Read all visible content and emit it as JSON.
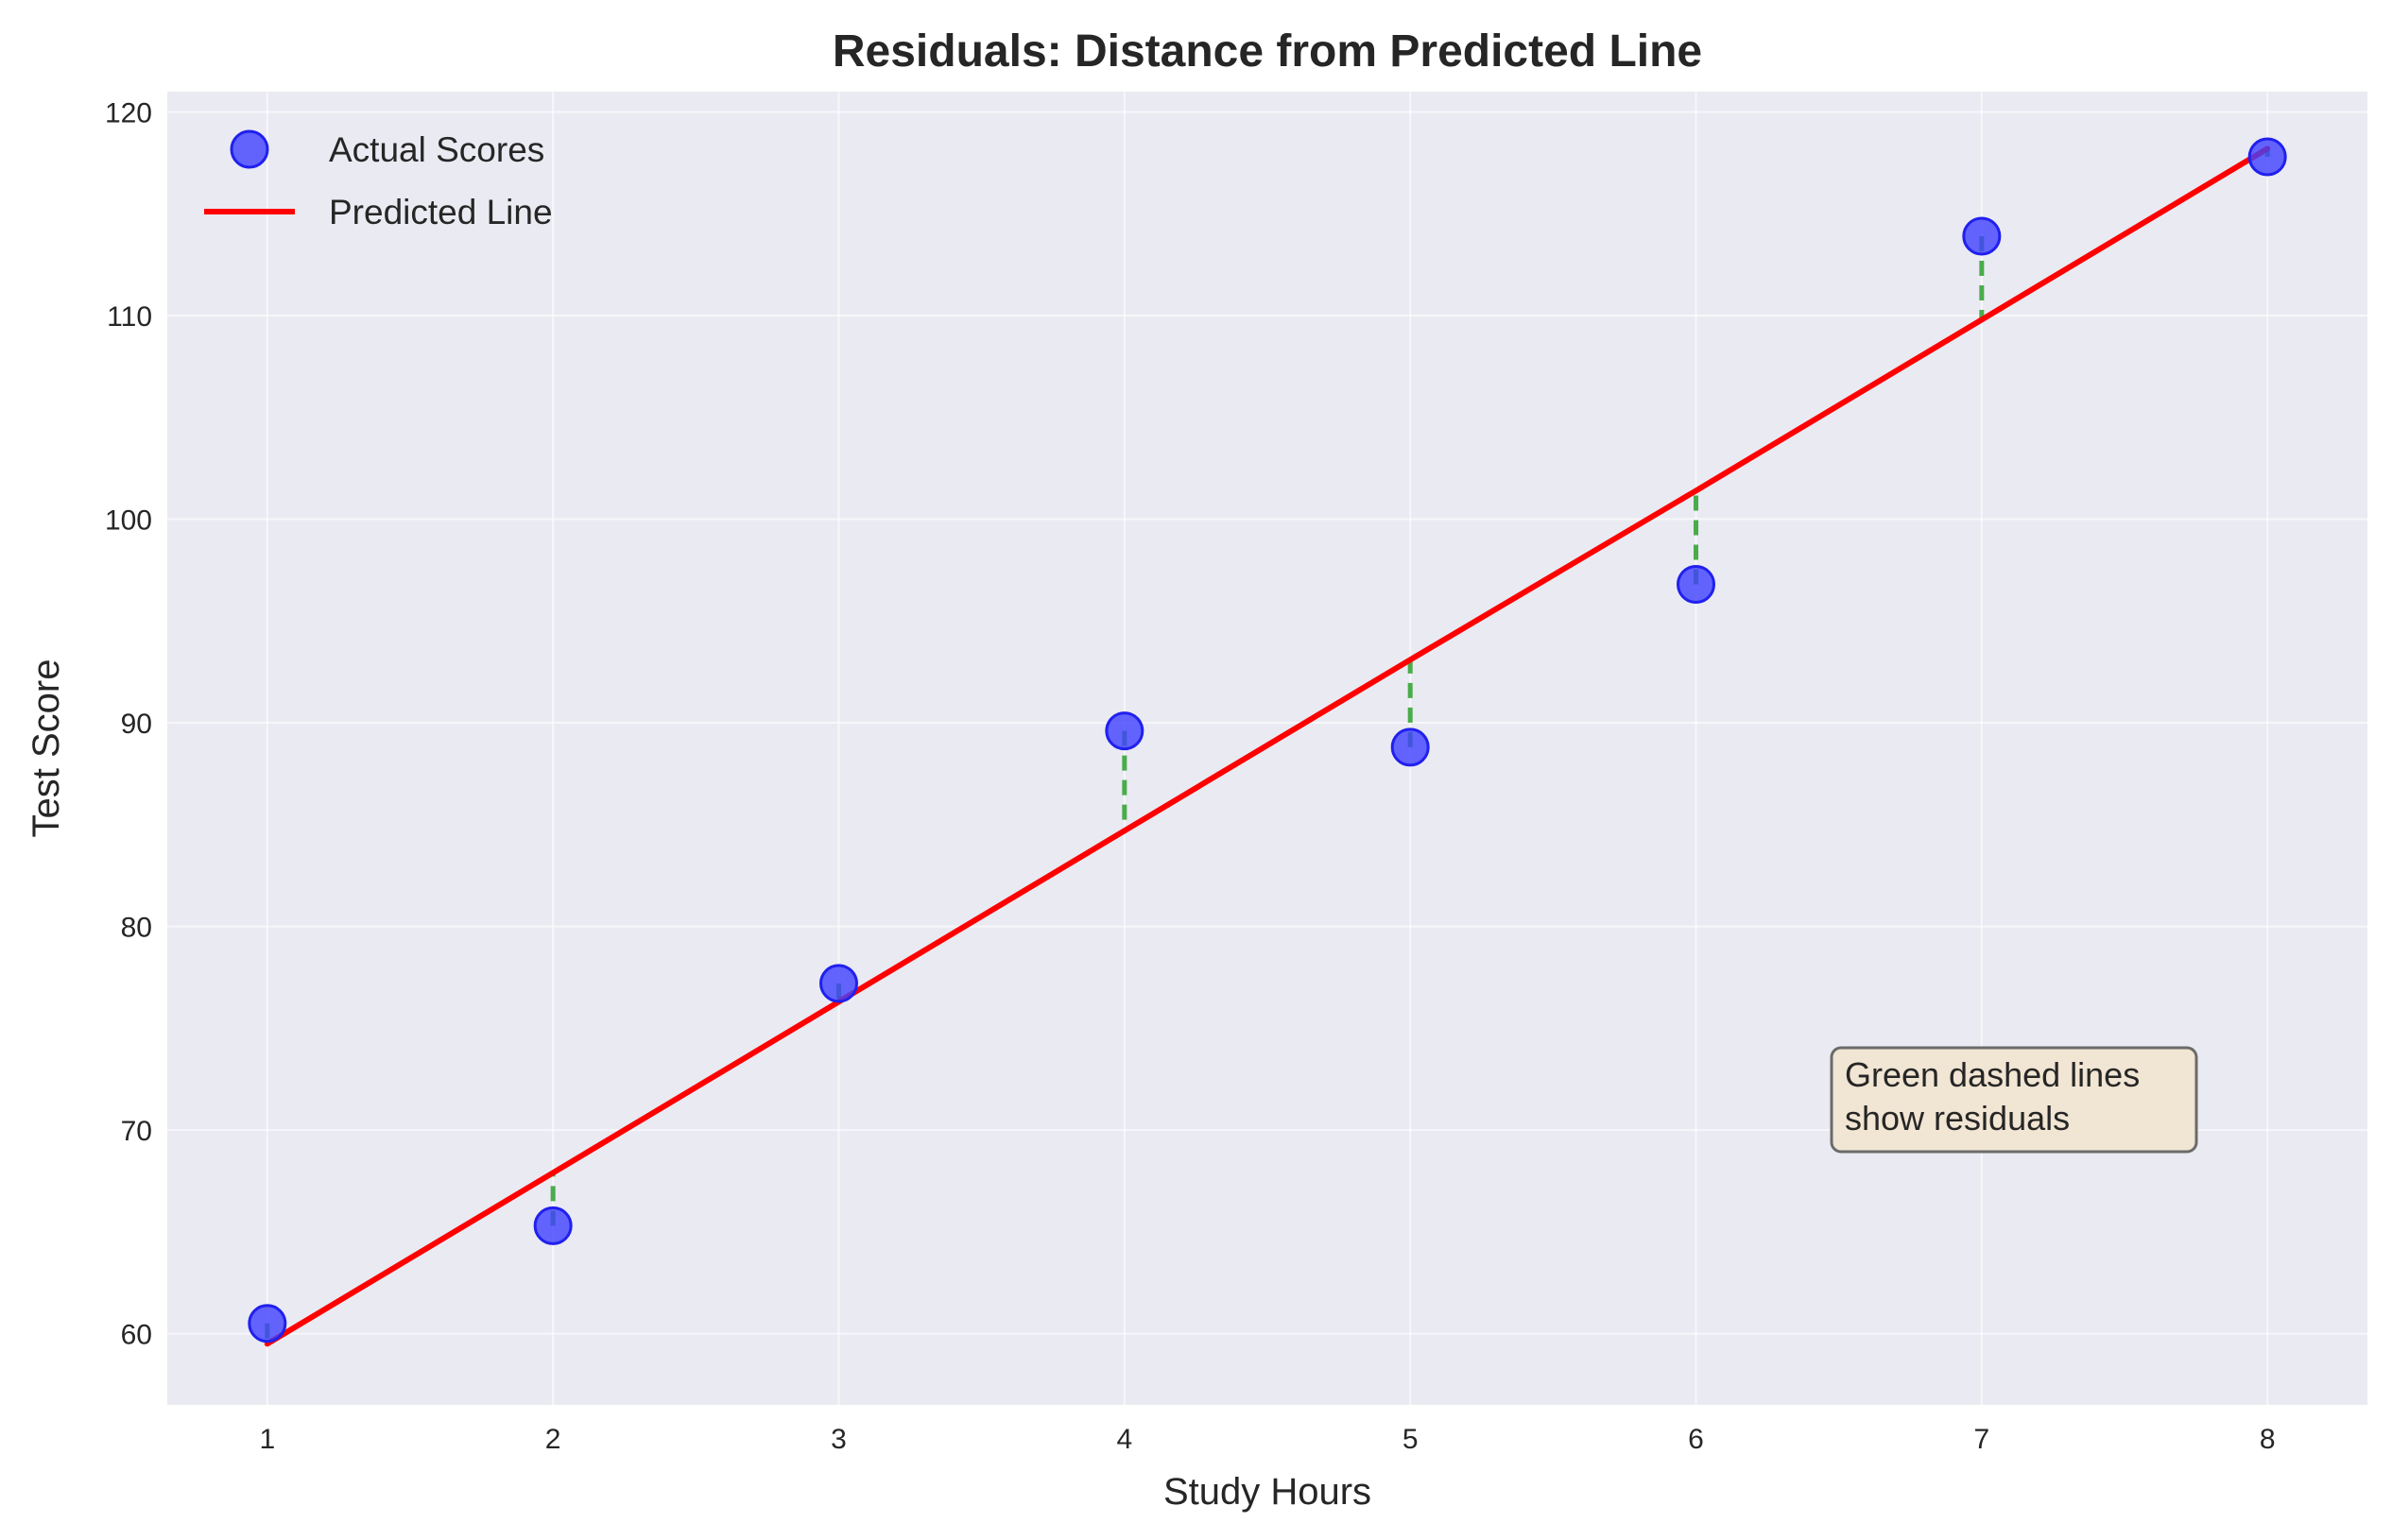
{
  "chart_data": {
    "type": "scatter",
    "title": "Residuals: Distance from Predicted Line",
    "xlabel": "Study Hours",
    "ylabel": "Test Score",
    "xlim": [
      0.65,
      8.35
    ],
    "ylim": [
      56.5,
      121
    ],
    "xticks": [
      1,
      2,
      3,
      4,
      5,
      6,
      7,
      8
    ],
    "yticks": [
      60,
      70,
      80,
      90,
      100,
      110,
      120
    ],
    "grid": true,
    "legend_position": "upper-left",
    "series": [
      {
        "name": "Actual Scores",
        "kind": "scatter",
        "color": "#4040ff",
        "x": [
          1,
          2,
          3,
          4,
          5,
          6,
          7,
          8
        ],
        "y": [
          60.5,
          65.3,
          77.2,
          89.6,
          88.8,
          96.8,
          113.9,
          117.8
        ]
      },
      {
        "name": "Predicted Line",
        "kind": "line",
        "color": "#ff0000",
        "x": [
          1,
          2,
          3,
          4,
          5,
          6,
          7,
          8
        ],
        "y": [
          59.5,
          67.9,
          76.3,
          84.7,
          93.1,
          101.4,
          109.8,
          118.2
        ]
      }
    ],
    "residual_color": "#2ca02c",
    "annotation": {
      "lines": [
        "Green dashed lines",
        "show residuals"
      ]
    }
  }
}
